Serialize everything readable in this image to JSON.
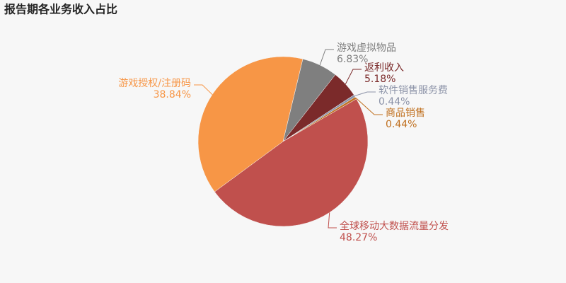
{
  "chart_data": {
    "type": "pie",
    "title": "报告期各业务收入占比",
    "categories": [
      "游戏虚拟物品",
      "返利收入",
      "软件销售服务费",
      "商品销售",
      "全球移动大数据流量分发",
      "游戏授权/注册码"
    ],
    "values": [
      6.83,
      5.18,
      0.44,
      0.44,
      48.27,
      38.84
    ],
    "value_labels": [
      "6.83%",
      "5.18%",
      "0.44%",
      "0.44%",
      "48.27%",
      "38.84%"
    ],
    "colors": [
      "#7f7f7f",
      "#7b2a2a",
      "#8c93a8",
      "#c0701f",
      "#c0504d",
      "#f79646"
    ]
  }
}
